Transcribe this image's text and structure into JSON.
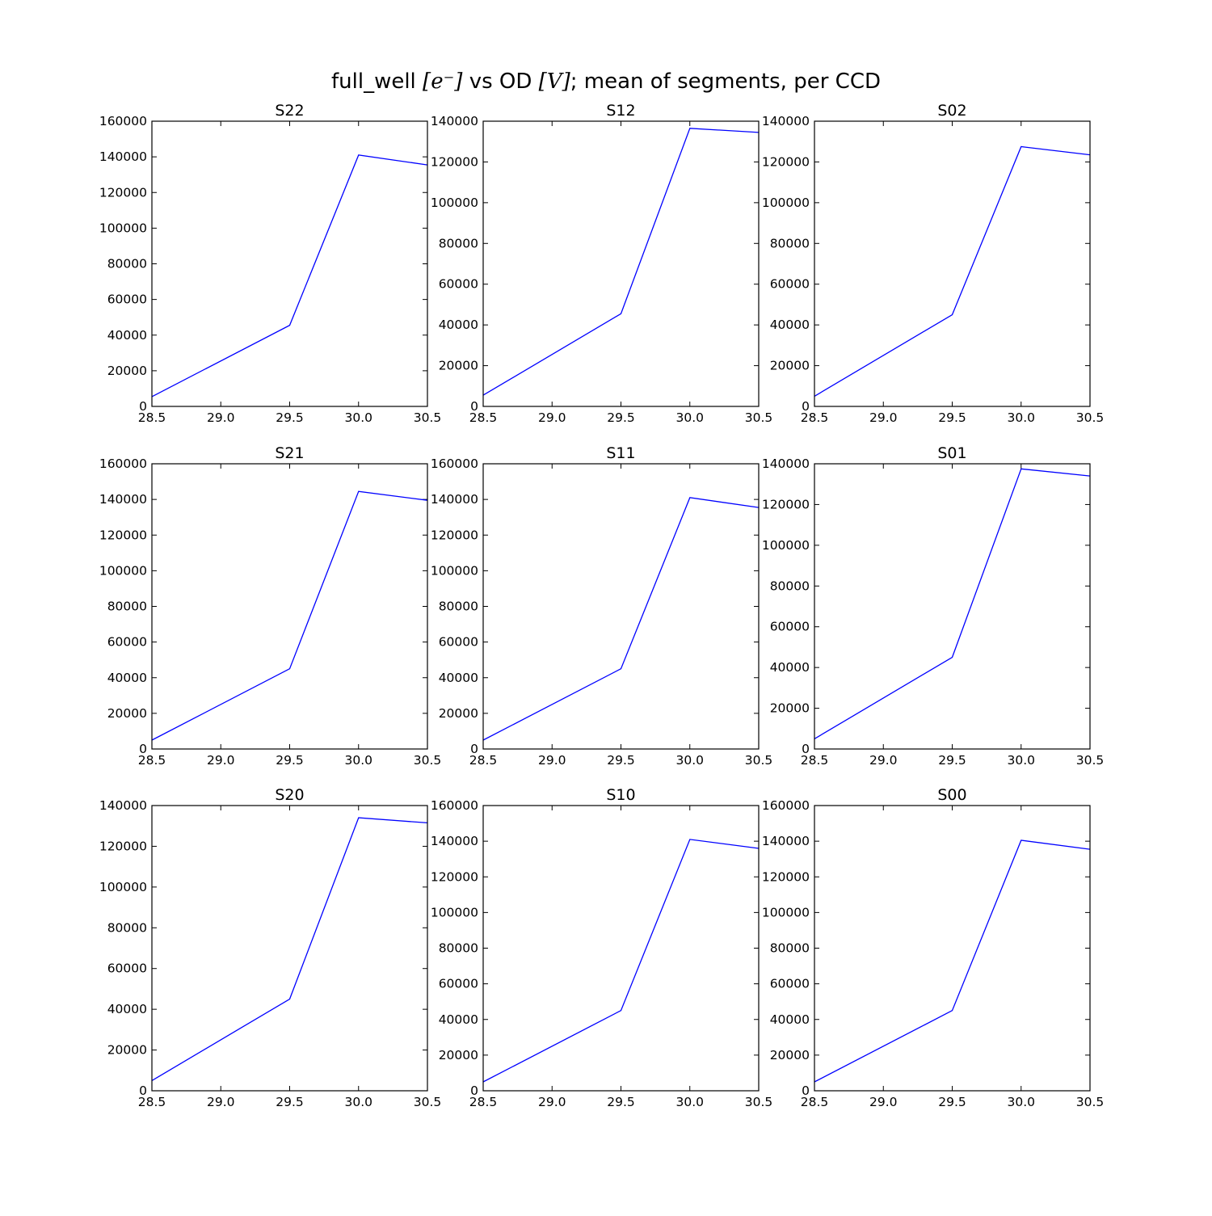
{
  "figure": {
    "suptitle_pre": "full_well ",
    "suptitle_math1": "[e⁻]",
    "suptitle_mid": " vs OD ",
    "suptitle_math2": "[V]",
    "suptitle_post": "; mean of segments, per CCD",
    "line_color": "#0000ff"
  },
  "chart_data": [
    {
      "type": "line",
      "title": "S22",
      "x": [
        28.5,
        29.5,
        30.0,
        30.5
      ],
      "y": [
        5500,
        45500,
        141000,
        135500
      ],
      "xlim": [
        28.5,
        30.5
      ],
      "ylim": [
        0,
        160000
      ],
      "xticks": [
        "28.5",
        "29.0",
        "29.5",
        "30.0",
        "30.5"
      ],
      "yticks": [
        "0",
        "20000",
        "40000",
        "60000",
        "80000",
        "100000",
        "120000",
        "140000",
        "160000"
      ],
      "grid": false
    },
    {
      "type": "line",
      "title": "S12",
      "x": [
        28.5,
        29.5,
        30.0,
        30.5
      ],
      "y": [
        5500,
        45500,
        136500,
        134500
      ],
      "xlim": [
        28.5,
        30.5
      ],
      "ylim": [
        0,
        140000
      ],
      "xticks": [
        "28.5",
        "29.0",
        "29.5",
        "30.0",
        "30.5"
      ],
      "yticks": [
        "0",
        "20000",
        "40000",
        "60000",
        "80000",
        "100000",
        "120000",
        "140000"
      ],
      "grid": false
    },
    {
      "type": "line",
      "title": "S02",
      "x": [
        28.5,
        29.5,
        30.0,
        30.5
      ],
      "y": [
        5000,
        45000,
        127500,
        123500
      ],
      "xlim": [
        28.5,
        30.5
      ],
      "ylim": [
        0,
        140000
      ],
      "xticks": [
        "28.5",
        "29.0",
        "29.5",
        "30.0",
        "30.5"
      ],
      "yticks": [
        "0",
        "20000",
        "40000",
        "60000",
        "80000",
        "100000",
        "120000",
        "140000"
      ],
      "grid": false
    },
    {
      "type": "line",
      "title": "S21",
      "x": [
        28.5,
        29.5,
        30.0,
        30.5
      ],
      "y": [
        5000,
        45000,
        144500,
        139500
      ],
      "xlim": [
        28.5,
        30.5
      ],
      "ylim": [
        0,
        160000
      ],
      "xticks": [
        "28.5",
        "29.0",
        "29.5",
        "30.0",
        "30.5"
      ],
      "yticks": [
        "0",
        "20000",
        "40000",
        "60000",
        "80000",
        "100000",
        "120000",
        "140000",
        "160000"
      ],
      "grid": false
    },
    {
      "type": "line",
      "title": "S11",
      "x": [
        28.5,
        29.5,
        30.0,
        30.5
      ],
      "y": [
        5000,
        45000,
        141000,
        135500
      ],
      "xlim": [
        28.5,
        30.5
      ],
      "ylim": [
        0,
        160000
      ],
      "xticks": [
        "28.5",
        "29.0",
        "29.5",
        "30.0",
        "30.5"
      ],
      "yticks": [
        "0",
        "20000",
        "40000",
        "60000",
        "80000",
        "100000",
        "120000",
        "140000",
        "160000"
      ],
      "grid": false
    },
    {
      "type": "line",
      "title": "S01",
      "x": [
        28.5,
        29.5,
        30.0,
        30.5
      ],
      "y": [
        5000,
        45000,
        137500,
        134000
      ],
      "xlim": [
        28.5,
        30.5
      ],
      "ylim": [
        0,
        140000
      ],
      "xticks": [
        "28.5",
        "29.0",
        "29.5",
        "30.0",
        "30.5"
      ],
      "yticks": [
        "0",
        "20000",
        "40000",
        "60000",
        "80000",
        "100000",
        "120000",
        "140000"
      ],
      "grid": false
    },
    {
      "type": "line",
      "title": "S20",
      "x": [
        28.5,
        29.5,
        30.0,
        30.5
      ],
      "y": [
        5000,
        45000,
        134000,
        131500
      ],
      "xlim": [
        28.5,
        30.5
      ],
      "ylim": [
        0,
        140000
      ],
      "xticks": [
        "28.5",
        "29.0",
        "29.5",
        "30.0",
        "30.5"
      ],
      "yticks": [
        "0",
        "20000",
        "40000",
        "60000",
        "80000",
        "100000",
        "120000",
        "140000"
      ],
      "grid": false
    },
    {
      "type": "line",
      "title": "S10",
      "x": [
        28.5,
        29.5,
        30.0,
        30.5
      ],
      "y": [
        5000,
        45000,
        141000,
        136000
      ],
      "xlim": [
        28.5,
        30.5
      ],
      "ylim": [
        0,
        160000
      ],
      "xticks": [
        "28.5",
        "29.0",
        "29.5",
        "30.0",
        "30.5"
      ],
      "yticks": [
        "0",
        "20000",
        "40000",
        "60000",
        "80000",
        "100000",
        "120000",
        "140000",
        "160000"
      ],
      "grid": false
    },
    {
      "type": "line",
      "title": "S00",
      "x": [
        28.5,
        29.5,
        30.0,
        30.5
      ],
      "y": [
        5000,
        45000,
        140500,
        135500
      ],
      "xlim": [
        28.5,
        30.5
      ],
      "ylim": [
        0,
        160000
      ],
      "xticks": [
        "28.5",
        "29.0",
        "29.5",
        "30.0",
        "30.5"
      ],
      "yticks": [
        "0",
        "20000",
        "40000",
        "60000",
        "80000",
        "100000",
        "120000",
        "140000",
        "160000"
      ],
      "grid": false
    }
  ]
}
